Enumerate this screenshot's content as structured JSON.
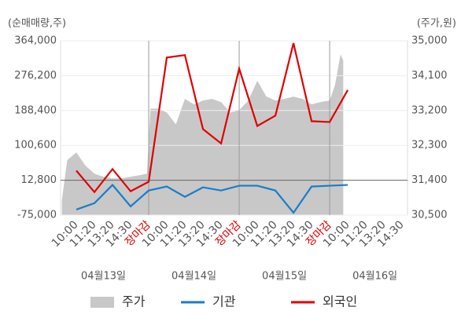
{
  "chart_data": {
    "type": "combo",
    "y_axis_label": "(순매매량,주)",
    "y2_axis_label": "(주가,원)",
    "xlim": [
      -0.87,
      18.3
    ],
    "xticks": [
      {
        "value": 0,
        "label": "10:00"
      },
      {
        "value": 1,
        "label": "11:20"
      },
      {
        "value": 2,
        "label": "13:20"
      },
      {
        "value": 3,
        "label": "14:30"
      },
      {
        "value": 4,
        "label": "장마감",
        "color": "#e00000",
        "divider": true
      },
      {
        "value": 5,
        "label": "10:00"
      },
      {
        "value": 6,
        "label": "11:20"
      },
      {
        "value": 7,
        "label": "13:20"
      },
      {
        "value": 8,
        "label": "14:30"
      },
      {
        "value": 9,
        "label": "장마감",
        "color": "#e00000",
        "divider": true
      },
      {
        "value": 10,
        "label": "10:00"
      },
      {
        "value": 11,
        "label": "11:20"
      },
      {
        "value": 12,
        "label": "13:20"
      },
      {
        "value": 13,
        "label": "14:30"
      },
      {
        "value": 14,
        "label": "장마감",
        "color": "#e00000",
        "divider": true
      },
      {
        "value": 15,
        "label": "10:00"
      },
      {
        "value": 16,
        "label": "11:20"
      },
      {
        "value": 17,
        "label": "13:20"
      },
      {
        "value": 18,
        "label": "14:30"
      }
    ],
    "day_labels": [
      {
        "value": 1.5,
        "label": "04월13일"
      },
      {
        "value": 6.5,
        "label": "04월14일"
      },
      {
        "value": 11.5,
        "label": "04월15일"
      },
      {
        "value": 16.5,
        "label": "04월16일"
      }
    ],
    "ylim": [
      -75000,
      364000
    ],
    "yticks": [
      {
        "value": -75000,
        "label": "-75,000"
      },
      {
        "value": 12800,
        "label": "12,800",
        "ref": true
      },
      {
        "value": 100600,
        "label": "100,600"
      },
      {
        "value": 188400,
        "label": "188,400"
      },
      {
        "value": 276200,
        "label": "276,200"
      },
      {
        "value": 364000,
        "label": "364,000"
      }
    ],
    "y2lim": [
      30500,
      35000
    ],
    "y2ticks": [
      {
        "value": 30500,
        "label": "30,500"
      },
      {
        "value": 31400,
        "label": "31,400"
      },
      {
        "value": 32300,
        "label": "32,300"
      },
      {
        "value": 33200,
        "label": "33,200"
      },
      {
        "value": 34100,
        "label": "34,100"
      },
      {
        "value": 35000,
        "label": "35,000"
      }
    ],
    "series": [
      {
        "name": "주가",
        "type": "area",
        "axis": "y2",
        "color": "#c8c8c8",
        "x": [
          -0.8,
          -0.5,
          0,
          0.5,
          1,
          1.5,
          2,
          2.5,
          3,
          3.5,
          3.9,
          4.1,
          4.5,
          5,
          5.5,
          6,
          6.5,
          7,
          7.5,
          8,
          8.5,
          9,
          9.5,
          10,
          10.5,
          11,
          11.5,
          12,
          12.5,
          13,
          13.5,
          14,
          14.3,
          14.6,
          14.75
        ],
        "values": [
          30890,
          31920,
          32120,
          31780,
          31570,
          31490,
          31450,
          31450,
          31490,
          31530,
          31570,
          33250,
          33250,
          33150,
          32840,
          33500,
          33360,
          33460,
          33500,
          33420,
          33150,
          33210,
          33460,
          33970,
          33560,
          33460,
          33500,
          33560,
          33500,
          33360,
          33420,
          33460,
          33870,
          34650,
          34490
        ]
      },
      {
        "name": "기관",
        "type": "line",
        "color": "#1a7dc8",
        "x": [
          0,
          1,
          2,
          3,
          4,
          5,
          6,
          7,
          8,
          9,
          10,
          11,
          12,
          13,
          14,
          15
        ],
        "values": [
          -61000,
          -45000,
          1000,
          -53000,
          -13000,
          -3000,
          -29000,
          -5000,
          -13000,
          -1000,
          -1000,
          -13000,
          -69000,
          -3000,
          -1000,
          1000
        ]
      },
      {
        "name": "외국인",
        "type": "line",
        "color": "#e00000",
        "x": [
          0,
          1,
          2,
          3,
          4,
          5,
          6,
          7,
          8,
          9,
          10,
          11,
          12,
          13,
          14,
          15
        ],
        "values": [
          37000,
          -17000,
          41000,
          -15000,
          9000,
          322000,
          328000,
          141500,
          105500,
          294000,
          149500,
          175500,
          358000,
          161500,
          159500,
          240000
        ]
      }
    ]
  }
}
